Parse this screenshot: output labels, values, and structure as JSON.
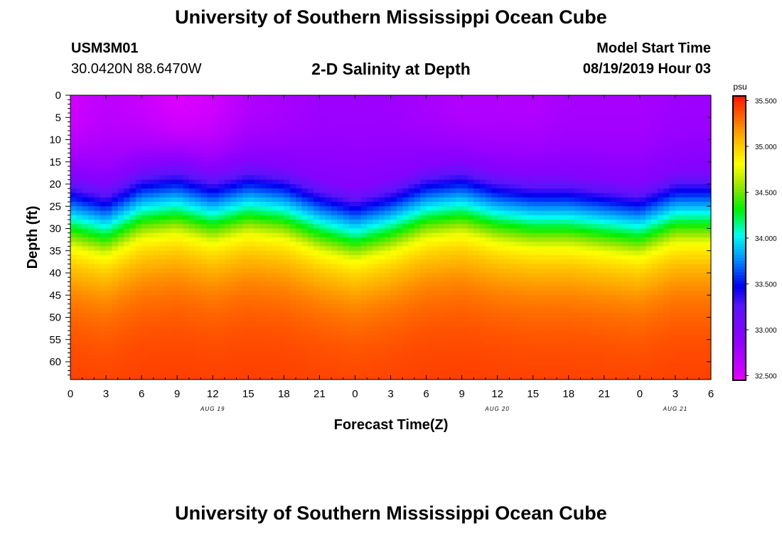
{
  "header": {
    "title": "University of Southern Mississippi Ocean Cube",
    "station_id": "USM3M01",
    "coords": "30.0420N 88.6470W",
    "chart_title": "2-D Salinity at Depth",
    "start_label": "Model Start Time",
    "start_date": "08/19/2019 Hour 03"
  },
  "footer": {
    "title": "University of Southern Mississippi Ocean Cube"
  },
  "chart_data": {
    "type": "heatmap",
    "title": "2-D Salinity at Depth",
    "xlabel": "Forecast Time(Z)",
    "ylabel": "Depth (ft)",
    "x_hours_range": [
      0,
      54
    ],
    "y_range": [
      0,
      64
    ],
    "x_tick_labels": [
      "0",
      "3",
      "6",
      "9",
      "12",
      "15",
      "18",
      "21",
      "0",
      "3",
      "6",
      "9",
      "12",
      "15",
      "18",
      "21",
      "0",
      "3",
      "6"
    ],
    "y_tick_labels": [
      "0",
      "5",
      "10",
      "15",
      "20",
      "25",
      "30",
      "35",
      "40",
      "45",
      "50",
      "55",
      "60"
    ],
    "y_tick_values": [
      0,
      5,
      10,
      15,
      20,
      25,
      30,
      35,
      40,
      45,
      50,
      55,
      60
    ],
    "date_labels": [
      {
        "hour": 12,
        "label": "AUG 19"
      },
      {
        "hour": 36,
        "label": "AUG 20"
      },
      {
        "hour": 51,
        "label": "AUG 21"
      }
    ],
    "colorbar": {
      "unit": "psu",
      "min": 32.45,
      "max": 35.55,
      "tick_labels": [
        "35.500",
        "35.000",
        "34.500",
        "34.000",
        "33.500",
        "33.000",
        "32.500"
      ],
      "tick_values": [
        35.5,
        35.0,
        34.5,
        34.0,
        33.5,
        33.0,
        32.5
      ]
    },
    "halocline_depth_ft": {
      "hours": [
        0,
        3,
        6,
        9,
        12,
        15,
        18,
        21,
        24,
        27,
        30,
        33,
        36,
        39,
        42,
        45,
        48,
        51,
        54
      ],
      "values": [
        24,
        26,
        22,
        21,
        23,
        21,
        22,
        25,
        27,
        25,
        22,
        21,
        23,
        24,
        24,
        25,
        26,
        23,
        23
      ]
    },
    "surface_salinity_psu": {
      "hours": [
        0,
        3,
        6,
        9,
        12,
        15,
        18,
        21,
        24,
        27,
        30,
        33,
        36,
        39,
        42,
        45,
        48,
        51,
        54
      ],
      "values": [
        32.55,
        32.65,
        32.6,
        32.5,
        32.55,
        32.7,
        32.75,
        32.8,
        32.8,
        32.8,
        32.75,
        32.7,
        32.7,
        32.7,
        32.75,
        32.75,
        32.75,
        32.8,
        32.8
      ]
    },
    "deep_salinity_psu": 35.45
  }
}
